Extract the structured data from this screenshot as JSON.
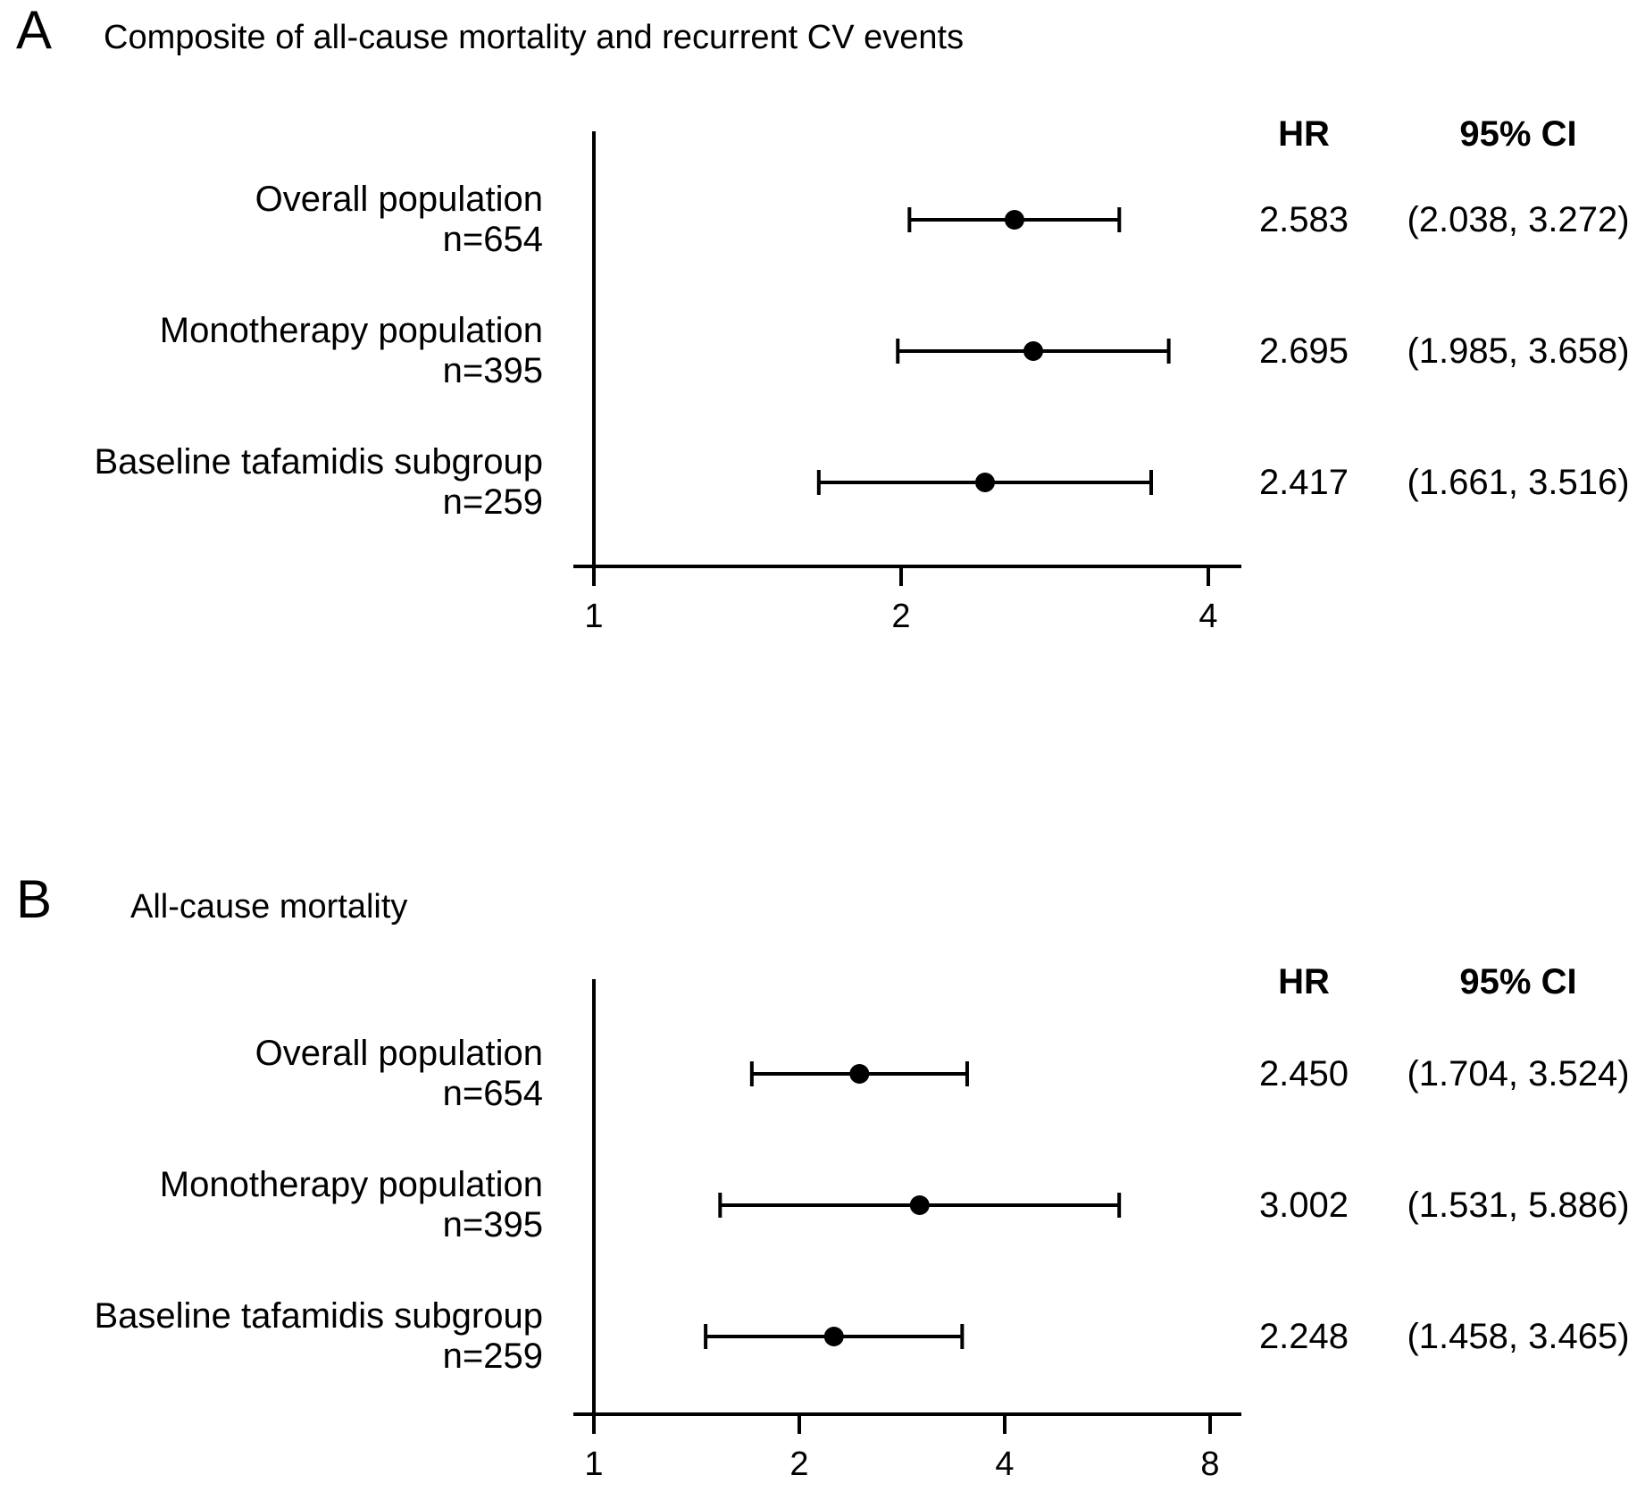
{
  "panels": [
    {
      "letter": "A",
      "title": "Composite of all-cause mortality and recurrent CV events",
      "columns": {
        "hr": "HR",
        "ci": "95% CI"
      },
      "ticks": [
        "1",
        "2",
        "4"
      ],
      "rows": [
        {
          "group": "Overall population",
          "n": "n=654",
          "hr": 2.583,
          "lo": 2.038,
          "hi": 3.272,
          "hr_text": "2.583",
          "ci_text": "(2.038, 3.272)"
        },
        {
          "group": "Monotherapy population",
          "n": "n=395",
          "hr": 2.695,
          "lo": 1.985,
          "hi": 3.658,
          "hr_text": "2.695",
          "ci_text": "(1.985, 3.658)"
        },
        {
          "group": "Baseline tafamidis subgroup",
          "n": "n=259",
          "hr": 2.417,
          "lo": 1.661,
          "hi": 3.516,
          "hr_text": "2.417",
          "ci_text": "(1.661, 3.516)"
        }
      ]
    },
    {
      "letter": "B",
      "title": "All-cause mortality",
      "columns": {
        "hr": "HR",
        "ci": "95% CI"
      },
      "ticks": [
        "1",
        "2",
        "4",
        "8"
      ],
      "rows": [
        {
          "group": "Overall population",
          "n": "n=654",
          "hr": 2.45,
          "lo": 1.704,
          "hi": 3.524,
          "hr_text": "2.450",
          "ci_text": "(1.704, 3.524)"
        },
        {
          "group": "Monotherapy population",
          "n": "n=395",
          "hr": 3.002,
          "lo": 1.531,
          "hi": 5.886,
          "hr_text": "3.002",
          "ci_text": "(1.531, 5.886)"
        },
        {
          "group": "Baseline tafamidis subgroup",
          "n": "n=259",
          "hr": 2.248,
          "lo": 1.458,
          "hi": 3.465,
          "hr_text": "2.248",
          "ci_text": "(1.458, 3.465)"
        }
      ]
    }
  ],
  "colors": {
    "ink": "#000000",
    "background": "#ffffff"
  },
  "chart_data": [
    {
      "type": "scatter",
      "subtype": "forest-plot",
      "title": "Composite of all-cause mortality and recurrent CV events",
      "panel_label": "A",
      "categories": [
        "Overall population n=654",
        "Monotherapy population n=395",
        "Baseline tafamidis subgroup n=259"
      ],
      "series": [
        {
          "name": "Hazard ratio (95% CI)",
          "values": [
            2.583,
            2.695,
            2.417
          ],
          "ci95_low": [
            2.038,
            1.985,
            1.661
          ],
          "ci95_high": [
            3.272,
            3.658,
            3.516
          ]
        }
      ],
      "value_columns": {
        "HR": [
          "2.583",
          "2.695",
          "2.417"
        ],
        "95% CI": [
          "(2.038, 3.272)",
          "(1.985, 3.658)",
          "(1.661, 3.516)"
        ]
      },
      "xlabel": "",
      "ylabel": "",
      "xscale": "log2",
      "x_ticks": [
        1,
        2,
        4
      ],
      "xlim": [
        0.95,
        4.35
      ],
      "grid": false,
      "legend": false
    },
    {
      "type": "scatter",
      "subtype": "forest-plot",
      "title": "All-cause mortality",
      "panel_label": "B",
      "categories": [
        "Overall population n=654",
        "Monotherapy population n=395",
        "Baseline tafamidis subgroup n=259"
      ],
      "series": [
        {
          "name": "Hazard ratio (95% CI)",
          "values": [
            2.45,
            3.002,
            2.248
          ],
          "ci95_low": [
            1.704,
            1.531,
            1.458
          ],
          "ci95_high": [
            3.524,
            5.886,
            3.465
          ]
        }
      ],
      "value_columns": {
        "HR": [
          "2.450",
          "3.002",
          "2.248"
        ],
        "95% CI": [
          "(1.704, 3.524)",
          "(1.531, 5.886)",
          "(1.458, 3.465)"
        ]
      },
      "xlabel": "",
      "ylabel": "",
      "xscale": "log2",
      "x_ticks": [
        1,
        2,
        4,
        8
      ],
      "xlim": [
        0.93,
        8.9
      ],
      "grid": false,
      "legend": false
    }
  ]
}
